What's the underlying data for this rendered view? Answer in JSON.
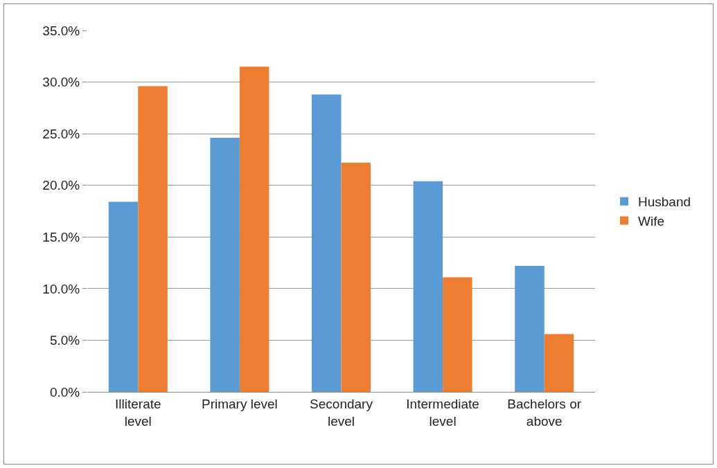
{
  "chart_data": {
    "type": "bar",
    "categories": [
      "Illiterate level",
      "Primary level",
      "Secondary level",
      "Intermediate level",
      "Bachelors or above"
    ],
    "series": [
      {
        "name": "Husband",
        "color": "#5b9bd5",
        "values": [
          18.4,
          24.6,
          28.8,
          20.4,
          12.2
        ]
      },
      {
        "name": "Wife",
        "color": "#ed7d31",
        "values": [
          29.6,
          31.5,
          22.2,
          11.1,
          5.6
        ]
      }
    ],
    "ylim": [
      0,
      35
    ],
    "yticks": [
      {
        "value": 0,
        "label": "0.0%"
      },
      {
        "value": 5,
        "label": "5.0%"
      },
      {
        "value": 10,
        "label": "10.0%"
      },
      {
        "value": 15,
        "label": "15.0%"
      },
      {
        "value": 20,
        "label": "20.0%"
      },
      {
        "value": 25,
        "label": "25.0%"
      },
      {
        "value": 30,
        "label": "30.0%"
      },
      {
        "value": 35,
        "label": "35.0%"
      }
    ],
    "grid": "y",
    "legend": "right"
  }
}
